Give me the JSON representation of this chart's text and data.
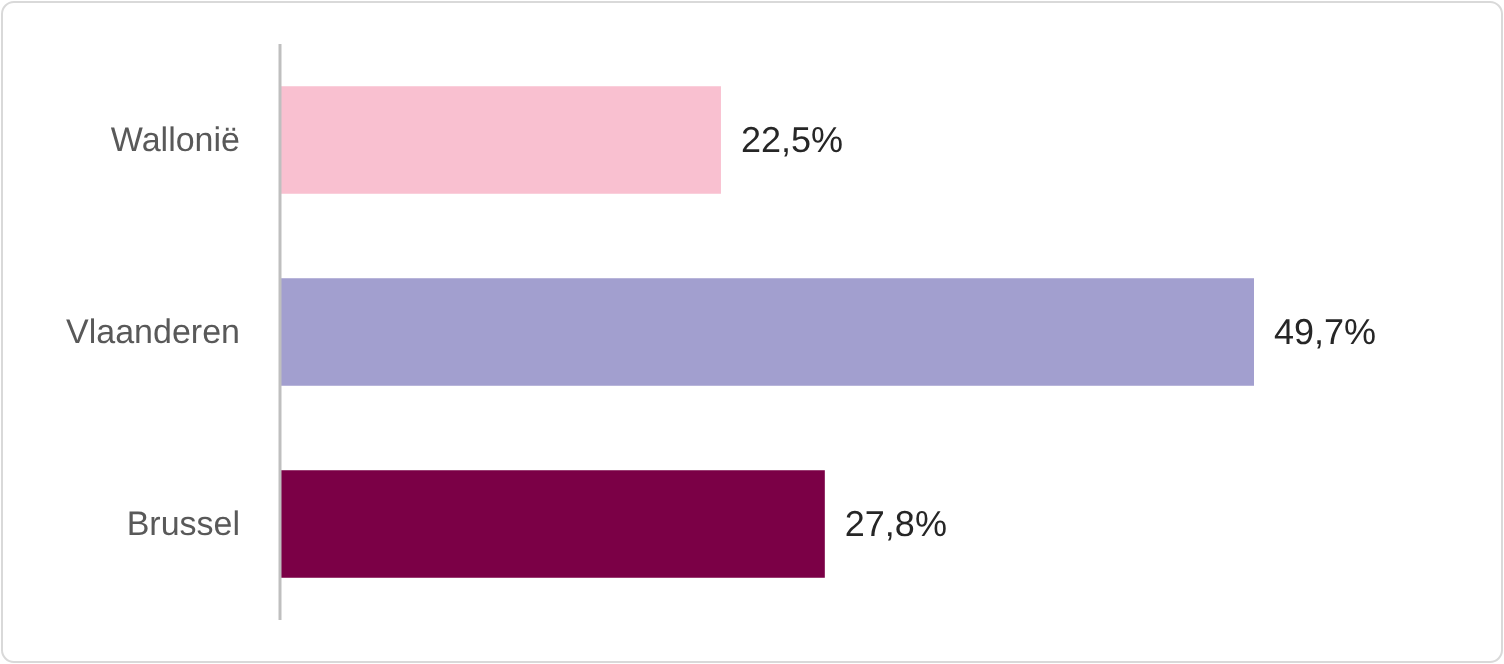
{
  "chart_data": {
    "type": "bar",
    "orientation": "horizontal",
    "categories": [
      "Wallonië",
      "Vlaanderen",
      "Brussel"
    ],
    "values": [
      22.5,
      49.7,
      27.8
    ],
    "colors": [
      "#f9c0d0",
      "#a29fcf",
      "#7b0046"
    ],
    "value_labels": [
      "22,5%",
      "49,7%",
      "27,8%"
    ]
  }
}
